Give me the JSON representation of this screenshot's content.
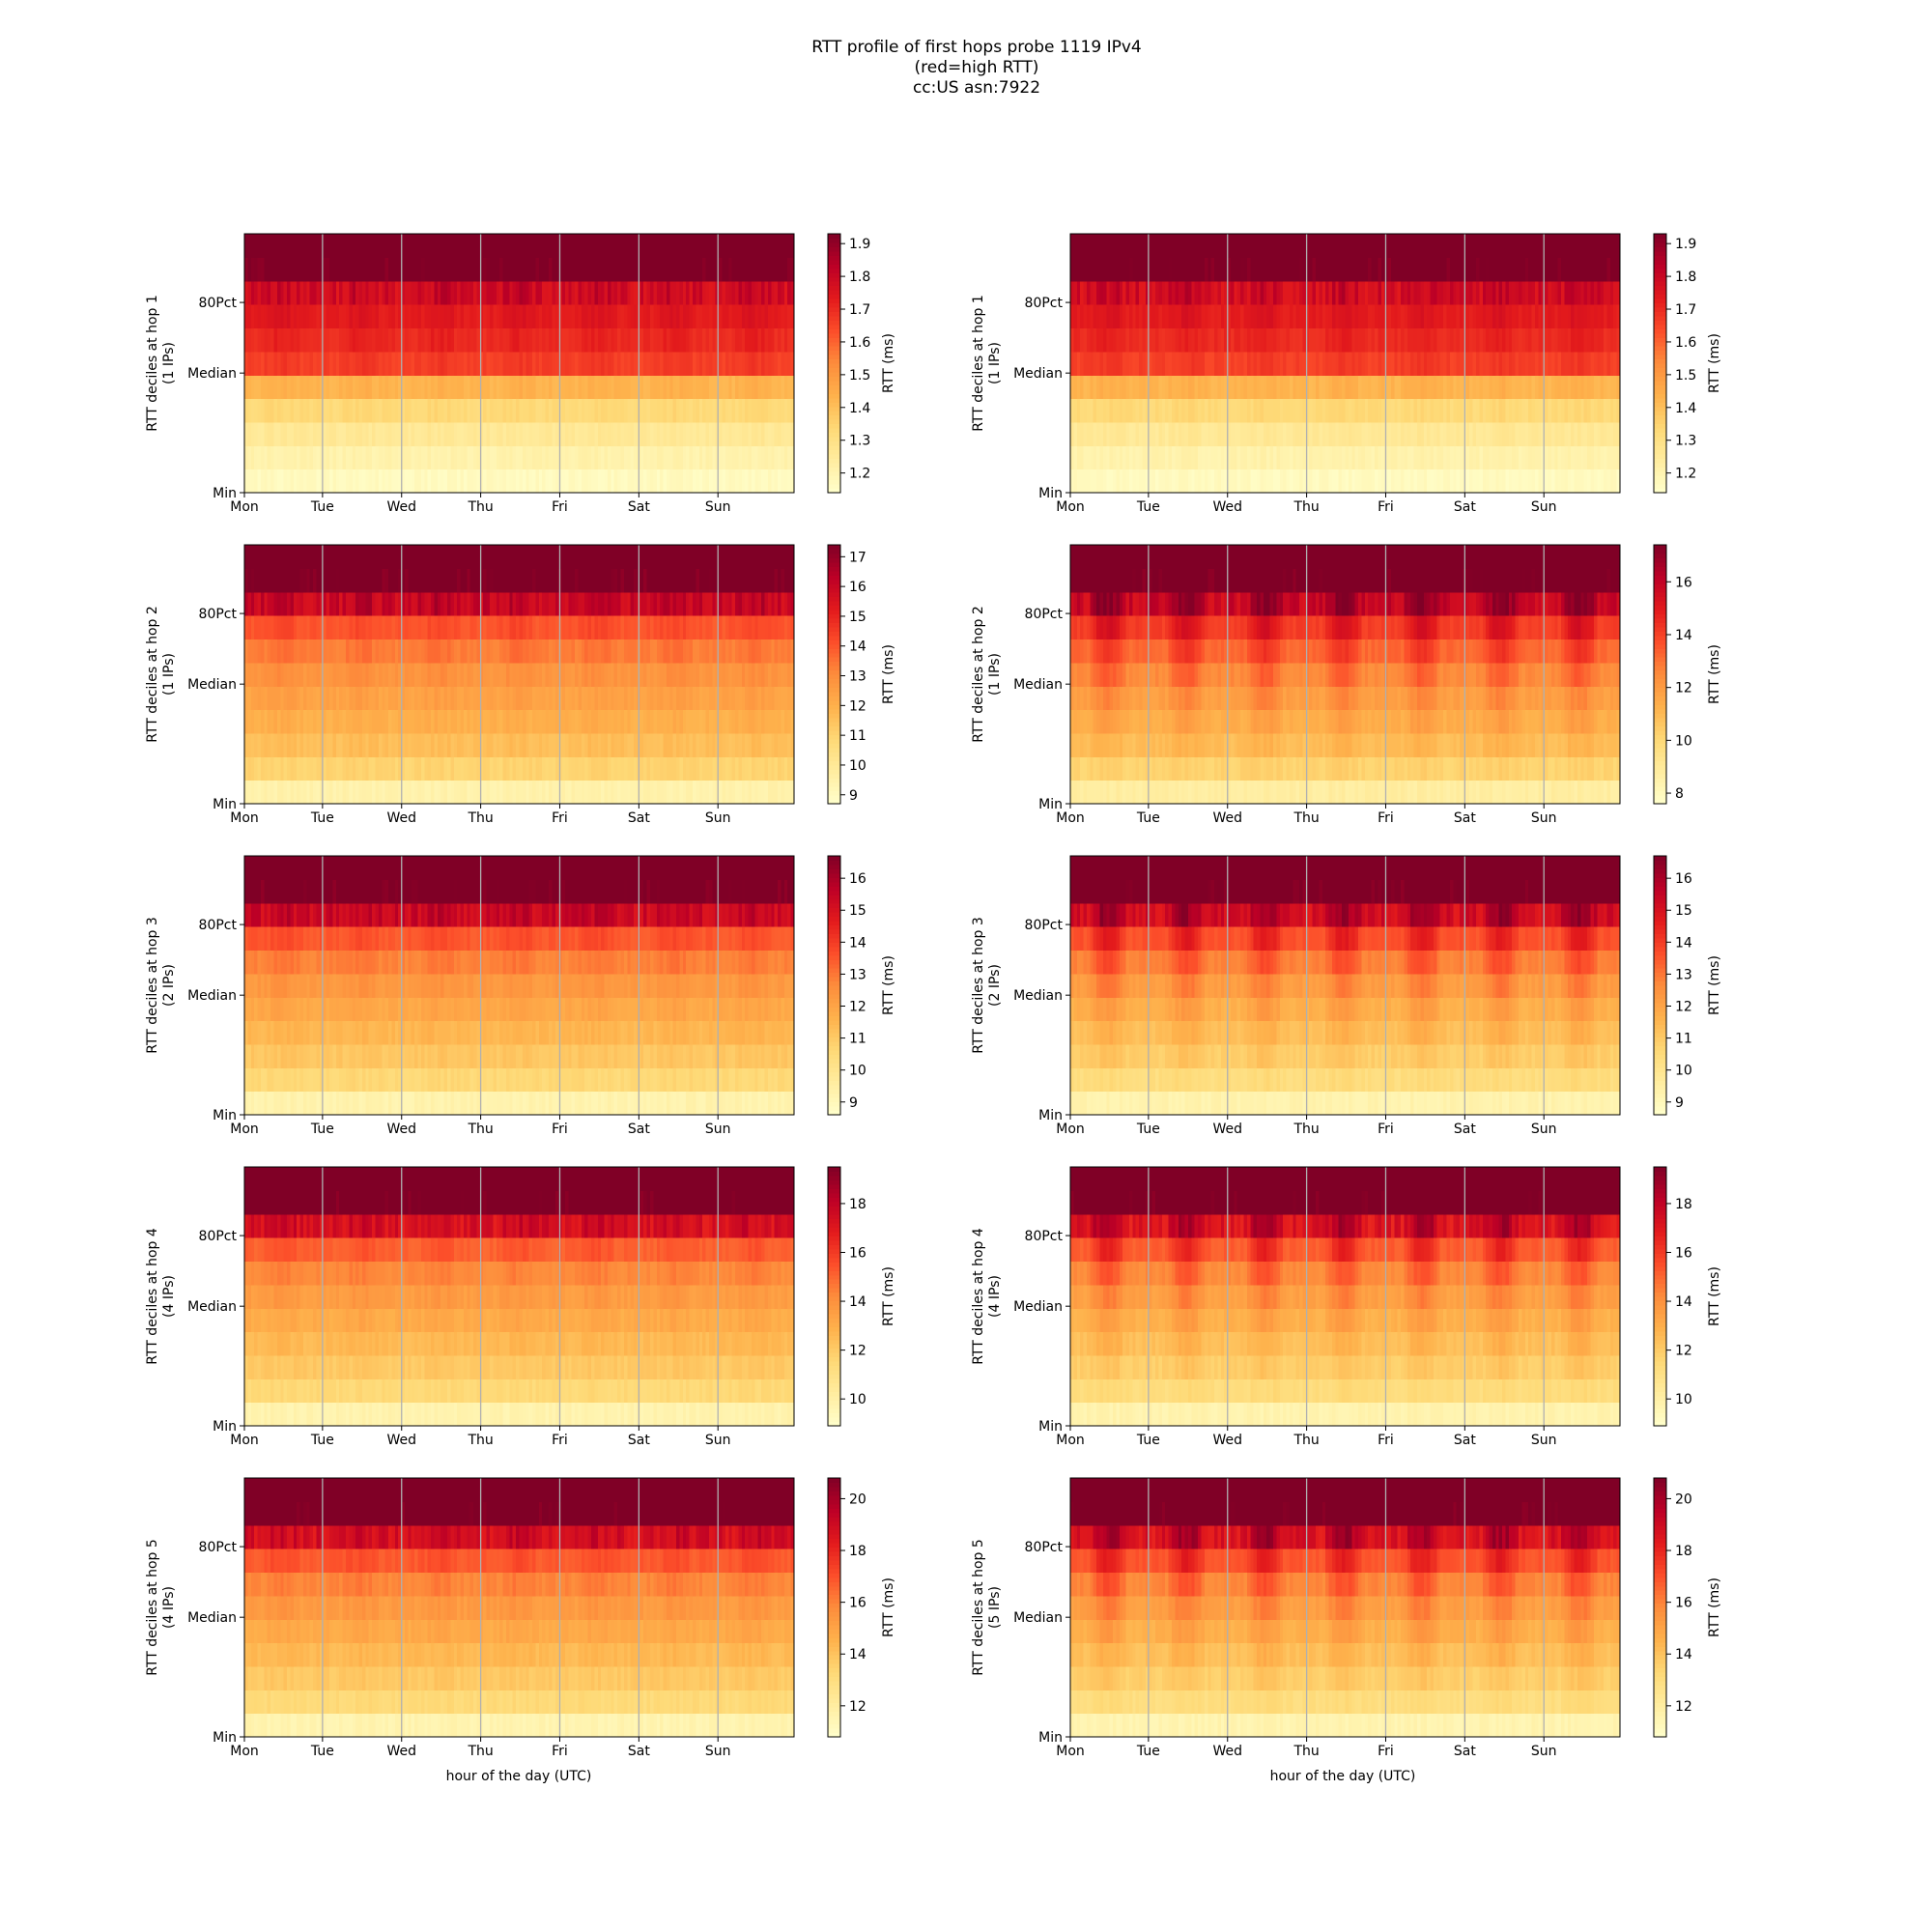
{
  "figure": {
    "title_lines": [
      "RTT profile of first hops probe 1119 IPv4",
      "(red=high RTT)",
      "cc:US asn:7922"
    ],
    "xlabel": "hour of the day (UTC)"
  },
  "chart_data": [
    {
      "type": "heatmap",
      "row": 1,
      "col": 1,
      "ylabel": [
        "RTT deciles at hop 1",
        "(1 IPs)"
      ],
      "colorbar_label": "RTT (ms)",
      "colorbar_range": [
        1.14,
        1.93
      ],
      "colorbar_ticks": [
        "1.2",
        "1.3",
        "1.4",
        "1.5",
        "1.6",
        "1.7",
        "1.8",
        "1.9"
      ],
      "x_ticks": [
        "Mon",
        "Tue",
        "Wed",
        "Thu",
        "Fri",
        "Sat",
        "Sun"
      ],
      "y_ticks": [
        "Min",
        "Median",
        "80Pct"
      ],
      "decile_levels_ms": [
        1.17,
        1.21,
        1.26,
        1.33,
        1.43,
        1.66,
        1.7,
        1.73,
        1.78,
        1.95
      ],
      "daily_variation": "low",
      "colormap": "YlOrRd"
    },
    {
      "type": "heatmap",
      "row": 1,
      "col": 2,
      "ylabel": [
        "RTT deciles at hop 1",
        "(1 IPs)"
      ],
      "colorbar_label": "RTT (ms)",
      "colorbar_range": [
        1.14,
        1.93
      ],
      "colorbar_ticks": [
        "1.2",
        "1.3",
        "1.4",
        "1.5",
        "1.6",
        "1.7",
        "1.8",
        "1.9"
      ],
      "x_ticks": [
        "Mon",
        "Tue",
        "Wed",
        "Thu",
        "Fri",
        "Sat",
        "Sun"
      ],
      "y_ticks": [
        "Min",
        "Median",
        "80Pct"
      ],
      "decile_levels_ms": [
        1.17,
        1.21,
        1.26,
        1.33,
        1.43,
        1.66,
        1.7,
        1.73,
        1.78,
        1.95
      ],
      "daily_variation": "low",
      "colormap": "YlOrRd"
    },
    {
      "type": "heatmap",
      "row": 2,
      "col": 1,
      "ylabel": [
        "RTT deciles at hop 2",
        "(1 IPs)"
      ],
      "colorbar_label": "RTT (ms)",
      "colorbar_range": [
        8.7,
        17.4
      ],
      "colorbar_ticks": [
        "9",
        "10",
        "11",
        "12",
        "13",
        "14",
        "15",
        "16",
        "17"
      ],
      "x_ticks": [
        "Mon",
        "Tue",
        "Wed",
        "Thu",
        "Fri",
        "Sat",
        "Sun"
      ],
      "y_ticks": [
        "Min",
        "Median",
        "80Pct"
      ],
      "decile_levels_ms": [
        9.5,
        11.0,
        11.6,
        12.0,
        12.4,
        12.8,
        13.3,
        14.0,
        16.0,
        17.6
      ],
      "daily_variation": "low",
      "colormap": "YlOrRd"
    },
    {
      "type": "heatmap",
      "row": 2,
      "col": 2,
      "ylabel": [
        "RTT deciles at hop 2",
        "(1 IPs)"
      ],
      "colorbar_label": "RTT (ms)",
      "colorbar_range": [
        7.6,
        17.4
      ],
      "colorbar_ticks": [
        "8",
        "10",
        "12",
        "14",
        "16"
      ],
      "x_ticks": [
        "Mon",
        "Tue",
        "Wed",
        "Thu",
        "Fri",
        "Sat",
        "Sun"
      ],
      "y_ticks": [
        "Min",
        "Median",
        "80Pct"
      ],
      "decile_levels_ms": [
        8.8,
        10.2,
        10.9,
        11.4,
        11.9,
        12.5,
        13.2,
        14.1,
        15.8,
        17.6
      ],
      "daily_variation": "high",
      "colormap": "YlOrRd"
    },
    {
      "type": "heatmap",
      "row": 3,
      "col": 1,
      "ylabel": [
        "RTT deciles at hop 3",
        "(2 IPs)"
      ],
      "colorbar_label": "RTT (ms)",
      "colorbar_range": [
        8.6,
        16.7
      ],
      "colorbar_ticks": [
        "9",
        "10",
        "11",
        "12",
        "13",
        "14",
        "15",
        "16"
      ],
      "x_ticks": [
        "Mon",
        "Tue",
        "Wed",
        "Thu",
        "Fri",
        "Sat",
        "Sun"
      ],
      "y_ticks": [
        "Min",
        "Median",
        "80Pct"
      ],
      "decile_levels_ms": [
        9.3,
        10.6,
        11.1,
        11.5,
        11.9,
        12.3,
        12.8,
        13.5,
        15.3,
        16.9
      ],
      "daily_variation": "low",
      "colormap": "YlOrRd"
    },
    {
      "type": "heatmap",
      "row": 3,
      "col": 2,
      "ylabel": [
        "RTT deciles at hop 3",
        "(2 IPs)"
      ],
      "colorbar_label": "RTT (ms)",
      "colorbar_range": [
        8.6,
        16.7
      ],
      "colorbar_ticks": [
        "9",
        "10",
        "11",
        "12",
        "13",
        "14",
        "15",
        "16"
      ],
      "x_ticks": [
        "Mon",
        "Tue",
        "Wed",
        "Thu",
        "Fri",
        "Sat",
        "Sun"
      ],
      "y_ticks": [
        "Min",
        "Median",
        "80Pct"
      ],
      "decile_levels_ms": [
        9.3,
        10.4,
        10.9,
        11.3,
        11.7,
        12.2,
        12.8,
        13.6,
        15.1,
        16.9
      ],
      "daily_variation": "high",
      "colormap": "YlOrRd"
    },
    {
      "type": "heatmap",
      "row": 4,
      "col": 1,
      "ylabel": [
        "RTT deciles at hop 4",
        "(4 IPs)"
      ],
      "colorbar_label": "RTT (ms)",
      "colorbar_range": [
        8.9,
        19.5
      ],
      "colorbar_ticks": [
        "10",
        "12",
        "14",
        "16",
        "18"
      ],
      "x_ticks": [
        "Mon",
        "Tue",
        "Wed",
        "Thu",
        "Fri",
        "Sat",
        "Sun"
      ],
      "y_ticks": [
        "Min",
        "Median",
        "80Pct"
      ],
      "decile_levels_ms": [
        9.8,
        11.5,
        12.1,
        12.6,
        13.1,
        13.6,
        14.2,
        15.1,
        17.3,
        19.8
      ],
      "daily_variation": "low",
      "colormap": "YlOrRd"
    },
    {
      "type": "heatmap",
      "row": 4,
      "col": 2,
      "ylabel": [
        "RTT deciles at hop 4",
        "(4 IPs)"
      ],
      "colorbar_label": "RTT (ms)",
      "colorbar_range": [
        8.9,
        19.5
      ],
      "colorbar_ticks": [
        "10",
        "12",
        "14",
        "16",
        "18"
      ],
      "x_ticks": [
        "Mon",
        "Tue",
        "Wed",
        "Thu",
        "Fri",
        "Sat",
        "Sun"
      ],
      "y_ticks": [
        "Min",
        "Median",
        "80Pct"
      ],
      "decile_levels_ms": [
        9.8,
        11.3,
        11.9,
        12.4,
        12.9,
        13.5,
        14.2,
        15.2,
        17.1,
        19.8
      ],
      "daily_variation": "high",
      "colormap": "YlOrRd"
    },
    {
      "type": "heatmap",
      "row": 5,
      "col": 1,
      "ylabel": [
        "RTT deciles at hop 5",
        "(4 IPs)"
      ],
      "colorbar_label": "RTT (ms)",
      "colorbar_range": [
        10.8,
        20.8
      ],
      "colorbar_ticks": [
        "12",
        "14",
        "16",
        "18",
        "20"
      ],
      "x_ticks": [
        "Mon",
        "Tue",
        "Wed",
        "Thu",
        "Fri",
        "Sat",
        "Sun"
      ],
      "y_ticks": [
        "Min",
        "Median",
        "80Pct"
      ],
      "decile_levels_ms": [
        11.6,
        13.2,
        13.8,
        14.3,
        14.8,
        15.3,
        15.9,
        16.8,
        18.8,
        21.1
      ],
      "daily_variation": "low",
      "colormap": "YlOrRd"
    },
    {
      "type": "heatmap",
      "row": 5,
      "col": 2,
      "ylabel": [
        "RTT deciles at hop 5",
        "(5 IPs)"
      ],
      "colorbar_label": "RTT (ms)",
      "colorbar_range": [
        10.8,
        20.8
      ],
      "colorbar_ticks": [
        "12",
        "14",
        "16",
        "18",
        "20"
      ],
      "x_ticks": [
        "Mon",
        "Tue",
        "Wed",
        "Thu",
        "Fri",
        "Sat",
        "Sun"
      ],
      "y_ticks": [
        "Min",
        "Median",
        "80Pct"
      ],
      "decile_levels_ms": [
        11.6,
        13.0,
        13.6,
        14.1,
        14.6,
        15.2,
        15.9,
        16.9,
        18.6,
        21.1
      ],
      "daily_variation": "high",
      "colormap": "YlOrRd"
    }
  ]
}
